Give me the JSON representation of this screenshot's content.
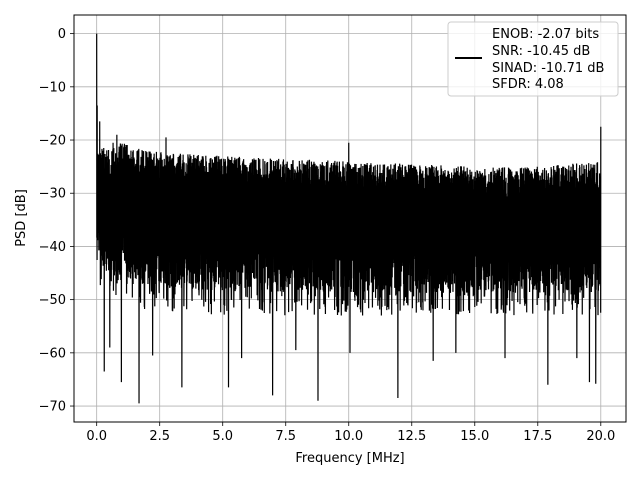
{
  "chart_data": {
    "type": "line",
    "title": "",
    "xlabel": "Frequency [MHz]",
    "ylabel": "PSD [dB]",
    "xlim": [
      -0.9,
      21.0
    ],
    "ylim": [
      -73.0,
      3.5
    ],
    "x_ticks": [
      0.0,
      2.5,
      5.0,
      7.5,
      10.0,
      12.5,
      15.0,
      17.5,
      20.0
    ],
    "x_tick_labels": [
      "0.0",
      "2.5",
      "5.0",
      "7.5",
      "10.0",
      "12.5",
      "15.0",
      "17.5",
      "20.0"
    ],
    "y_ticks": [
      0,
      -10,
      -20,
      -30,
      -40,
      -50,
      -60,
      -70
    ],
    "y_tick_labels": [
      "0",
      "−10",
      "−20",
      "−30",
      "−40",
      "−50",
      "−60",
      "−70"
    ],
    "grid": true,
    "legend_position": "upper right",
    "line_color": "#000000",
    "series": [
      {
        "legend_lines": [
          "ENOB: -2.07 bits",
          "SNR: -10.45 dB",
          "SINAD: -10.71 dB",
          "SFDR: 4.08"
        ],
        "x_range": [
          0.0,
          20.0
        ],
        "peak": {
          "x": 0.0,
          "y": 0.0
        },
        "noise_floor_upper_envelope": [
          [
            0.0,
            -22
          ],
          [
            0.5,
            -21
          ],
          [
            1.0,
            -20.5
          ],
          [
            2.0,
            -22
          ],
          [
            3.0,
            -22.5
          ],
          [
            5.0,
            -23
          ],
          [
            7.5,
            -23.5
          ],
          [
            10.0,
            -24
          ],
          [
            12.5,
            -24.5
          ],
          [
            15.0,
            -25
          ],
          [
            17.5,
            -25
          ],
          [
            20.0,
            -24
          ]
        ],
        "noise_floor_lower_envelope": [
          [
            0.0,
            -48
          ],
          [
            2.0,
            -52
          ],
          [
            5.0,
            -53
          ],
          [
            10.0,
            -53
          ],
          [
            15.0,
            -53
          ],
          [
            20.0,
            -53
          ]
        ],
        "spikes": [
          [
            0.02,
            -13.5
          ],
          [
            0.12,
            -16.5
          ],
          [
            0.3,
            -20.0
          ],
          [
            0.65,
            -20.5
          ],
          [
            0.8,
            -19.0
          ],
          [
            2.75,
            -19.5
          ],
          [
            10.0,
            -20.5
          ],
          [
            20.0,
            -17.5
          ]
        ],
        "dips": [
          [
            0.3,
            -63.5
          ],
          [
            0.52,
            -59.0
          ],
          [
            0.98,
            -65.5
          ],
          [
            1.68,
            -69.5
          ],
          [
            2.22,
            -60.5
          ],
          [
            3.38,
            -66.5
          ],
          [
            5.23,
            -66.5
          ],
          [
            5.75,
            -61.0
          ],
          [
            6.98,
            -68.0
          ],
          [
            7.9,
            -59.5
          ],
          [
            8.78,
            -69.0
          ],
          [
            10.05,
            -60.0
          ],
          [
            11.95,
            -68.5
          ],
          [
            13.35,
            -61.5
          ],
          [
            14.25,
            -60.0
          ],
          [
            16.2,
            -61.0
          ],
          [
            17.9,
            -66.0
          ],
          [
            19.05,
            -61.0
          ],
          [
            19.55,
            -65.5
          ],
          [
            19.8,
            -65.8
          ]
        ]
      }
    ]
  }
}
